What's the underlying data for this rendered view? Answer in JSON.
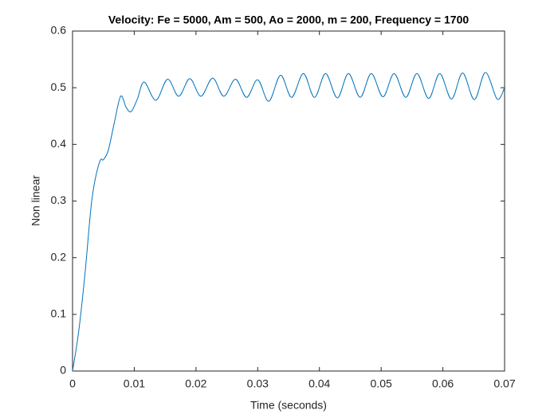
{
  "chart_data": {
    "type": "line",
    "title": "Velocity: Fe = 5000, Am = 500, Ao = 2000, m = 200, Frequency = 1700",
    "xlabel": "Time (seconds)",
    "ylabel": "Non linear",
    "x": [
      0,
      0.001,
      0.002,
      0.003,
      0.0037,
      0.0045,
      0.005,
      0.0058,
      0.0068,
      0.0078,
      0.0087,
      0.0095,
      0.0105,
      0.0116,
      0.0135,
      0.0154,
      0.0172,
      0.019,
      0.0208,
      0.0227,
      0.0245,
      0.0264,
      0.0282,
      0.03,
      0.0318,
      0.0337,
      0.0355,
      0.0374,
      0.0392,
      0.041,
      0.0429,
      0.0447,
      0.0466,
      0.0484,
      0.0503,
      0.0521,
      0.054,
      0.0558,
      0.0577,
      0.0595,
      0.0614,
      0.0632,
      0.0651,
      0.0669,
      0.0688,
      0.07
    ],
    "series": [
      {
        "name": "Non linear",
        "color": "#0072bd",
        "values": [
          0,
          0.07,
          0.17,
          0.29,
          0.34,
          0.372,
          0.373,
          0.39,
          0.44,
          0.485,
          0.465,
          0.458,
          0.48,
          0.51,
          0.478,
          0.515,
          0.485,
          0.516,
          0.485,
          0.517,
          0.485,
          0.515,
          0.483,
          0.514,
          0.476,
          0.522,
          0.483,
          0.525,
          0.483,
          0.525,
          0.482,
          0.525,
          0.483,
          0.525,
          0.484,
          0.525,
          0.483,
          0.525,
          0.481,
          0.525,
          0.48,
          0.526,
          0.479,
          0.527,
          0.48,
          0.5
        ]
      }
    ],
    "xlim": [
      0,
      0.07
    ],
    "xticks": [
      0,
      0.01,
      0.02,
      0.03,
      0.04,
      0.05,
      0.06,
      0.07
    ],
    "ylim": [
      0,
      0.6
    ],
    "yticks": [
      0,
      0.1,
      0.2,
      0.3,
      0.4,
      0.5,
      0.6
    ],
    "grid": false
  }
}
